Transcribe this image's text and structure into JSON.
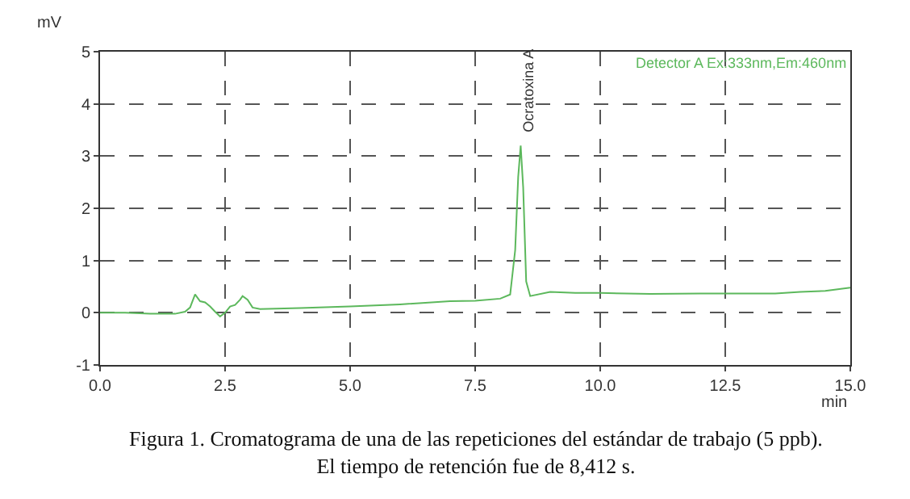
{
  "chart_data": {
    "type": "line",
    "xlabel": "min",
    "ylabel": "mV",
    "x": [
      0,
      0.5,
      1.0,
      1.5,
      1.7,
      1.8,
      1.9,
      2.0,
      2.1,
      2.2,
      2.3,
      2.4,
      2.5,
      2.6,
      2.7,
      2.8,
      2.85,
      2.95,
      3.05,
      3.2,
      4.0,
      5.0,
      6.0,
      7.0,
      7.5,
      8.0,
      8.2,
      8.3,
      8.36,
      8.41,
      8.46,
      8.52,
      8.6,
      9.0,
      9.5,
      10.0,
      11.0,
      12.0,
      12.5,
      13.5,
      14.0,
      14.5,
      15.0
    ],
    "series": [
      {
        "color": "#5cb85c",
        "values": [
          0,
          0,
          -0.02,
          -0.02,
          0.02,
          0.1,
          0.35,
          0.22,
          0.2,
          0.12,
          0.02,
          -0.07,
          0.0,
          0.12,
          0.15,
          0.25,
          0.32,
          0.25,
          0.1,
          0.07,
          0.09,
          0.12,
          0.16,
          0.22,
          0.23,
          0.27,
          0.35,
          1.2,
          2.6,
          3.2,
          2.4,
          0.6,
          0.32,
          0.4,
          0.38,
          0.38,
          0.36,
          0.37,
          0.37,
          0.37,
          0.4,
          0.42,
          0.48
        ]
      }
    ],
    "xlim": [
      0,
      15
    ],
    "ylim": [
      -1,
      5
    ],
    "xticks": [
      {
        "value": 0,
        "label": "0.0"
      },
      {
        "value": 2.5,
        "label": "2.5"
      },
      {
        "value": 5,
        "label": "5.0"
      },
      {
        "value": 7.5,
        "label": "7.5"
      },
      {
        "value": 10,
        "label": "10.0"
      },
      {
        "value": 12.5,
        "label": "12.5"
      },
      {
        "value": 15,
        "label": "15.0"
      }
    ],
    "yticks": [
      -1,
      0,
      1,
      2,
      3,
      4,
      5
    ],
    "grid": true,
    "line_style": "solid",
    "marker": "none",
    "annotations": [
      "Detector A Ex:333nm,Em:460nm",
      {
        "text": "Ocratoxina A",
        "x": 8.41,
        "y": 3.2
      },
      "Figura 1. Cromatograma de una de las repeticiones del estándar de trabajo (5 ppb).\nEl tiempo de retención fue de 8,412 s."
    ]
  }
}
